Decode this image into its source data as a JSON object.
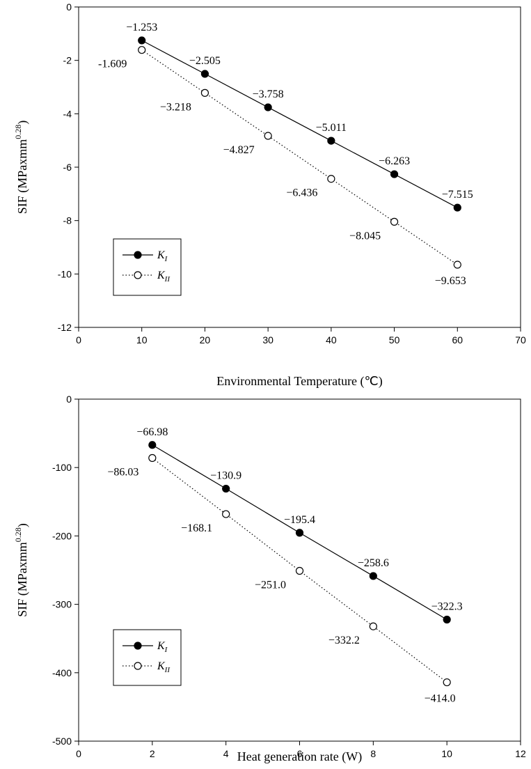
{
  "chart_data": [
    {
      "type": "line",
      "xlabel": "Environmental Temperature (℃)",
      "ylabel": "SIF (MPaxmm",
      "ylabel_sup": "0.28",
      "ylabel_close": ")",
      "xlim": [
        0,
        70
      ],
      "ylim": [
        -12,
        0
      ],
      "xticks": [
        0,
        10,
        20,
        30,
        40,
        50,
        60,
        70
      ],
      "yticks": [
        0,
        -2,
        -4,
        -6,
        -8,
        -10,
        -12
      ],
      "xtick_labels": [
        "0",
        "10",
        "20",
        "30",
        "40",
        "50",
        "60",
        "70"
      ],
      "ytick_labels": [
        "0",
        "-2",
        "-4",
        "-6",
        "-8",
        "-10",
        "-12"
      ],
      "grid": false,
      "legend_placement": "bottom-left",
      "x": [
        10,
        20,
        30,
        40,
        50,
        60
      ],
      "series": [
        {
          "name": "K",
          "name_sub": "I",
          "style": "solid",
          "marker": "filled-circle",
          "values": [
            -1.253,
            -2.505,
            -3.758,
            -5.011,
            -6.263,
            -7.515
          ],
          "labels": [
            "−1.253",
            "−2.505",
            "−3.758",
            "−5.011",
            "−6.263",
            "−7.515"
          ]
        },
        {
          "name": "K",
          "name_sub": "II",
          "style": "dotted",
          "marker": "open-circle",
          "values": [
            -1.609,
            -3.218,
            -4.827,
            -6.436,
            -8.045,
            -9.653
          ],
          "labels": [
            "-1.609",
            "−3.218",
            "−4.827",
            "−6.436",
            "−8.045",
            "−9.653"
          ]
        }
      ]
    },
    {
      "type": "line",
      "xlabel": "Heat generation rate (W)",
      "ylabel": "SIF (MPaxmm",
      "ylabel_sup": "0.28",
      "ylabel_close": ")",
      "xlim": [
        0,
        12
      ],
      "ylim": [
        -500,
        0
      ],
      "xticks": [
        0,
        2,
        4,
        6,
        8,
        10,
        12
      ],
      "yticks": [
        0,
        -100,
        -200,
        -300,
        -400,
        -500
      ],
      "xtick_labels": [
        "0",
        "2",
        "4",
        "6",
        "8",
        "10",
        "12"
      ],
      "ytick_labels": [
        "0",
        "-100",
        "-200",
        "-300",
        "-400",
        "-500"
      ],
      "grid": false,
      "legend_placement": "bottom-left",
      "x": [
        2,
        4,
        6,
        8,
        10
      ],
      "series": [
        {
          "name": "K",
          "name_sub": "I",
          "style": "solid",
          "marker": "filled-circle",
          "values": [
            -66.98,
            -130.9,
            -195.4,
            -258.6,
            -322.3
          ],
          "labels": [
            "−66.98",
            "−130.9",
            "−195.4",
            "−258.6",
            "−322.3"
          ]
        },
        {
          "name": "K",
          "name_sub": "II",
          "style": "dotted",
          "marker": "open-circle",
          "values": [
            -86.03,
            -168.1,
            -251.0,
            -332.2,
            -414.0
          ],
          "labels": [
            "−86.03",
            "−168.1",
            "−251.0",
            "−332.2",
            "−414.0"
          ]
        }
      ]
    }
  ]
}
